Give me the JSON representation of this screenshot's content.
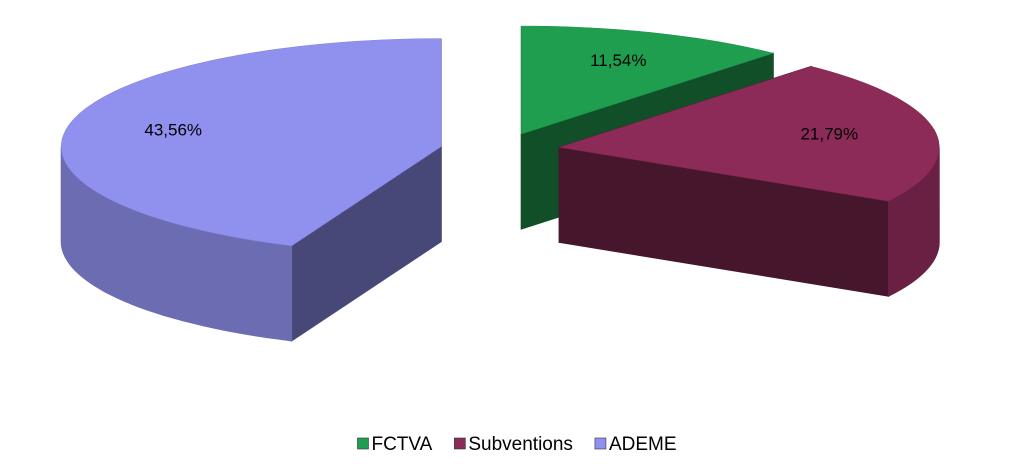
{
  "chart_data": {
    "type": "pie",
    "categories": [
      "FCTVA",
      "Subventions",
      "ADEME"
    ],
    "values": [
      11.54,
      21.79,
      43.56
    ],
    "value_labels": [
      "11,54%",
      "21,79%",
      "43,56%"
    ],
    "colors": [
      "#1f9e50",
      "#8c2b58",
      "#9090ef"
    ],
    "legend": "bottom"
  }
}
